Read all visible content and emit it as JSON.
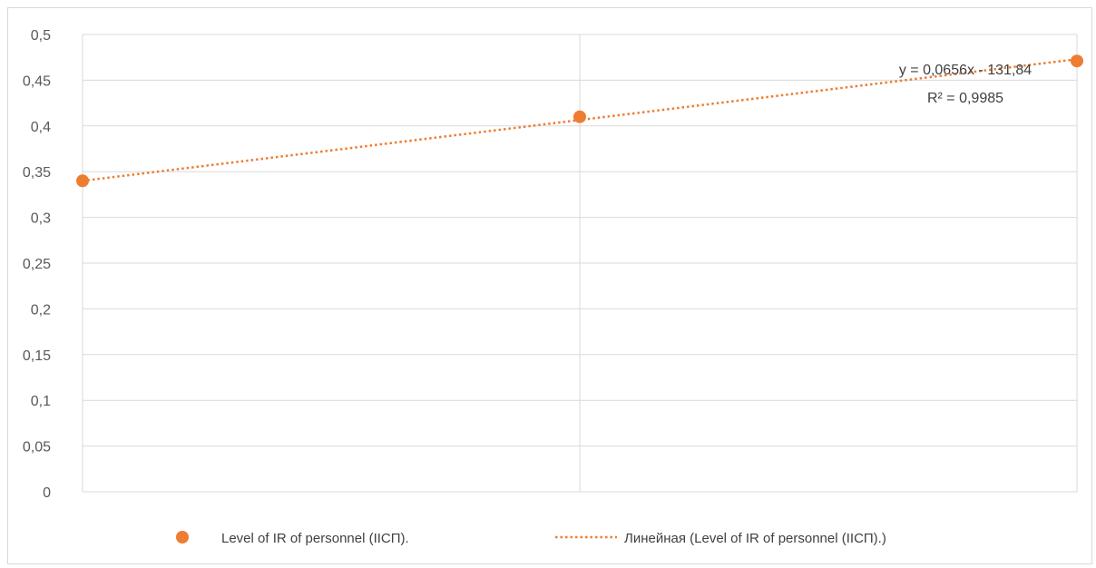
{
  "chart_data": {
    "type": "scatter",
    "title": "",
    "xlabel": "",
    "ylabel": "",
    "ylim": [
      0,
      0.5
    ],
    "yticks": [
      0,
      0.05,
      0.1,
      0.15,
      0.2,
      0.25,
      0.3,
      0.35,
      0.4,
      0.45,
      0.5
    ],
    "ytick_labels": [
      "0",
      "0,05",
      "0,1",
      "0,15",
      "0,2",
      "0,25",
      "0,3",
      "0,35",
      "0,4",
      "0,45",
      "0,5"
    ],
    "grid": true,
    "legend_position": "bottom",
    "series": [
      {
        "name": "Level of IR of personnel  (IIСП).",
        "points": [
          [
            1,
            0.34
          ],
          [
            2,
            0.41
          ],
          [
            3,
            0.471
          ]
        ],
        "color": "#ed7d31",
        "marker": "circle"
      }
    ],
    "trendline": {
      "name": "Линейная (Level of IR of personnel  (IIСП).)",
      "kind": "linear",
      "start_value": 0.34,
      "end_value": 0.473,
      "color": "#ed7d31",
      "style": "dotted",
      "equation": "y = 0,0656x - 131,84",
      "r_squared": "R² = 0,9985"
    }
  }
}
